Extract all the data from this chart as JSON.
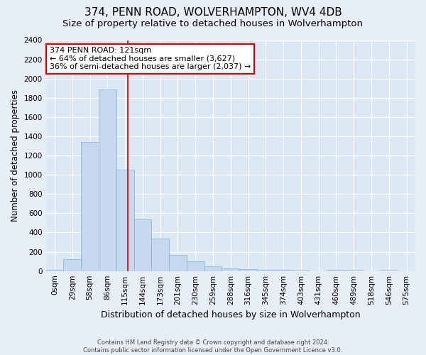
{
  "title": "374, PENN ROAD, WOLVERHAMPTON, WV4 4DB",
  "subtitle": "Size of property relative to detached houses in Wolverhampton",
  "xlabel": "Distribution of detached houses by size in Wolverhampton",
  "ylabel": "Number of detached properties",
  "footer_line1": "Contains HM Land Registry data © Crown copyright and database right 2024.",
  "footer_line2": "Contains public sector information licensed under the Open Government Licence v3.0.",
  "bar_labels": [
    "0sqm",
    "29sqm",
    "58sqm",
    "86sqm",
    "115sqm",
    "144sqm",
    "173sqm",
    "201sqm",
    "230sqm",
    "259sqm",
    "288sqm",
    "316sqm",
    "345sqm",
    "374sqm",
    "403sqm",
    "431sqm",
    "460sqm",
    "489sqm",
    "518sqm",
    "546sqm",
    "575sqm"
  ],
  "bar_values": [
    15,
    120,
    1340,
    1890,
    1050,
    540,
    340,
    170,
    100,
    50,
    30,
    20,
    15,
    10,
    5,
    0,
    10,
    5,
    0,
    5,
    0
  ],
  "bar_color": "#c5d8ed",
  "bar_edge_color": "#8ab4d4",
  "property_line_x": 4.15,
  "property_line_color": "#cc0000",
  "ylim": [
    0,
    2400
  ],
  "yticks": [
    0,
    200,
    400,
    600,
    800,
    1000,
    1200,
    1400,
    1600,
    1800,
    2000,
    2200,
    2400
  ],
  "annotation_text": "374 PENN ROAD: 121sqm\n← 64% of detached houses are smaller (3,627)\n36% of semi-detached houses are larger (2,037) →",
  "annotation_box_color": "#ffffff",
  "annotation_box_edge": "#cc0000",
  "bg_color": "#e8eef5",
  "plot_bg_color": "#dce8f4",
  "grid_color": "#ffffff",
  "title_fontsize": 11,
  "subtitle_fontsize": 9.5,
  "tick_fontsize": 7.5,
  "ylabel_fontsize": 8.5,
  "xlabel_fontsize": 9,
  "footer_fontsize": 6,
  "annot_fontsize": 8
}
